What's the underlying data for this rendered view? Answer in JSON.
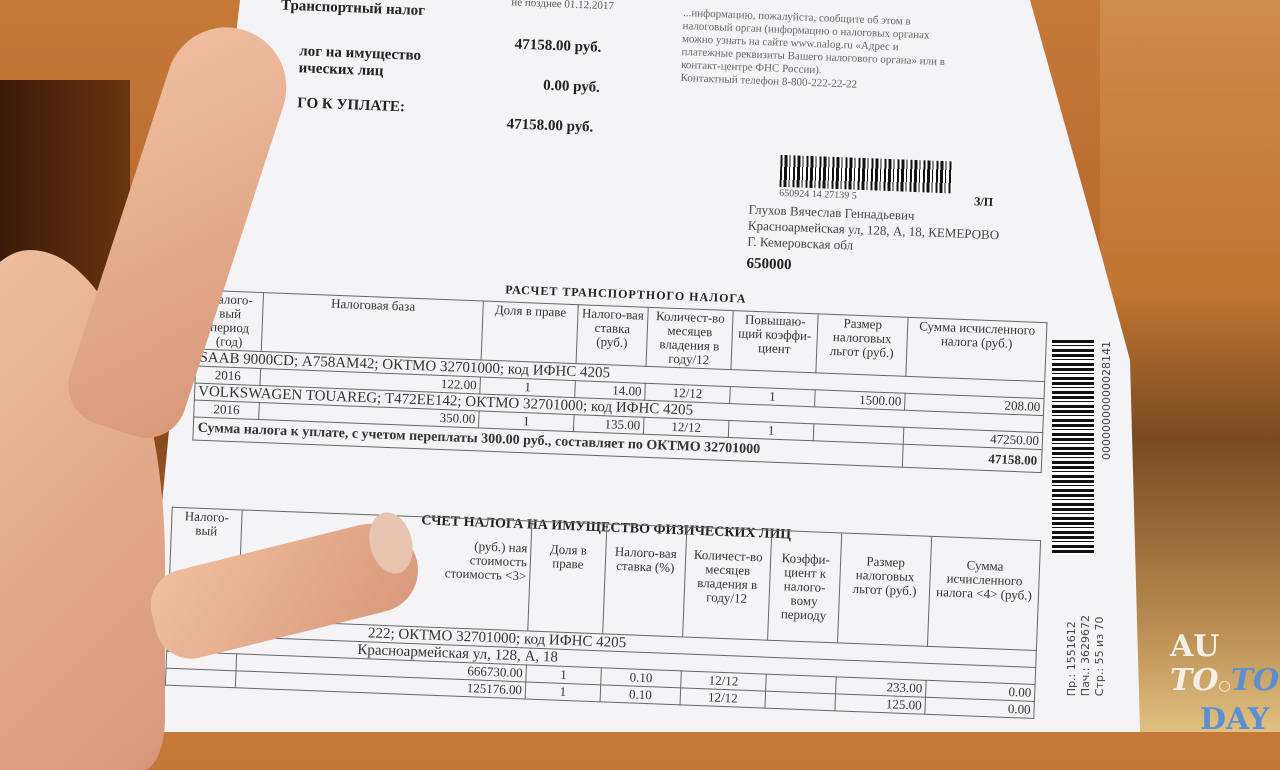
{
  "summary": {
    "deadline": "не позднее 01.12.2017",
    "transport_label": "Транспортный налог",
    "transport_amount": "47158.00 руб.",
    "property_label_1": "лог на имущество",
    "property_label_2": "ических лиц",
    "property_amount": "0.00 руб.",
    "total_label": "ГО К УПЛАТЕ:",
    "total_amount": "47158.00 руб."
  },
  "notice_lines": [
    "...информацию, пожалуйста, сообщите об этом в",
    "налоговый орган (информацию о налоговых органах",
    "можно узнать на сайте www.nalog.ru «Адрес и",
    "платежные реквизиты Вашего налогового органа» или в",
    "контакт-центре ФНС России).",
    "Контактный телефон 8-800-222-22-22"
  ],
  "recipient": {
    "postal_barcode_digits": "650924 14 27139 5",
    "mark": "З/П",
    "name": "Глухов Вячеслав Геннадьевич",
    "address_1": "Красноармейская ул, 128, А, 18, КЕМЕРОВО",
    "address_2": "Г. Кемеровская обл",
    "postcode": "650000"
  },
  "transport_table": {
    "title": "РАСЧЕТ ТРАНСПОРТНОГО НАЛОГА",
    "headers": [
      "Налого-вый период (год)",
      "Налоговая база",
      "Доля в праве",
      "Налого-вая ставка (руб.)",
      "Количест-во месяцев владения в году/12",
      "Повышаю-щий коэффи-циент",
      "Размер налоговых льгот (руб.)",
      "Сумма исчисленного налога (руб.)"
    ],
    "vehicles": [
      {
        "desc": "SAAB 9000CD; А758АМ42; ОКТМО 32701000; код ИФНС 4205",
        "row": [
          "2016",
          "122.00",
          "1",
          "14.00",
          "12/12",
          "1",
          "1500.00",
          "208.00"
        ]
      },
      {
        "desc": "VOLKSWAGEN TOUAREG; Т472ЕЕ142; ОКТМО 32701000; код ИФНС 4205",
        "row": [
          "2016",
          "350.00",
          "1",
          "135.00",
          "12/12",
          "1",
          "",
          "47250.00"
        ]
      }
    ],
    "total_label": "Сумма налога к уплате, с учетом переплаты 300.00 руб., составляет  по ОКТМО 32701000",
    "total_value": "47158.00"
  },
  "property_table": {
    "title": "СЧЕТ НАЛОГА НА ИМУЩЕСТВО ФИЗИЧЕСКИХ ЛИЦ",
    "headers": [
      "Налого-вый",
      "(руб.) ная стоимость стоимость <3>",
      "Доля в праве",
      "Налого-вая ставка (%)",
      "Количест-во месяцев владения в году/12",
      "Коэффи-циент к налого-вому периоду",
      "Размер налоговых льгот (руб.)",
      "Сумма исчисленного налога <4> (руб.)"
    ],
    "desc_1": "222; ОКТМО 32701000; код ИФНС 4205",
    "desc_2": "Красноармейская ул, 128, А, 18",
    "rows": [
      [
        "666730.00",
        "1",
        "0.10",
        "12/12",
        "",
        "233.00",
        "0.00"
      ],
      [
        "125176.00",
        "1",
        "0.10",
        "12/12",
        "",
        "125.00",
        "0.00"
      ]
    ]
  },
  "side": {
    "barcode_digits": "00000000000028141",
    "pr": "Пр.: 1551612",
    "pach": "Пач.: 3629672",
    "page": "Стр.: 55 из 70"
  },
  "watermark": {
    "line1": "AU",
    "line2a": "TO",
    "line2b": "TO",
    "line3": "DAY"
  }
}
